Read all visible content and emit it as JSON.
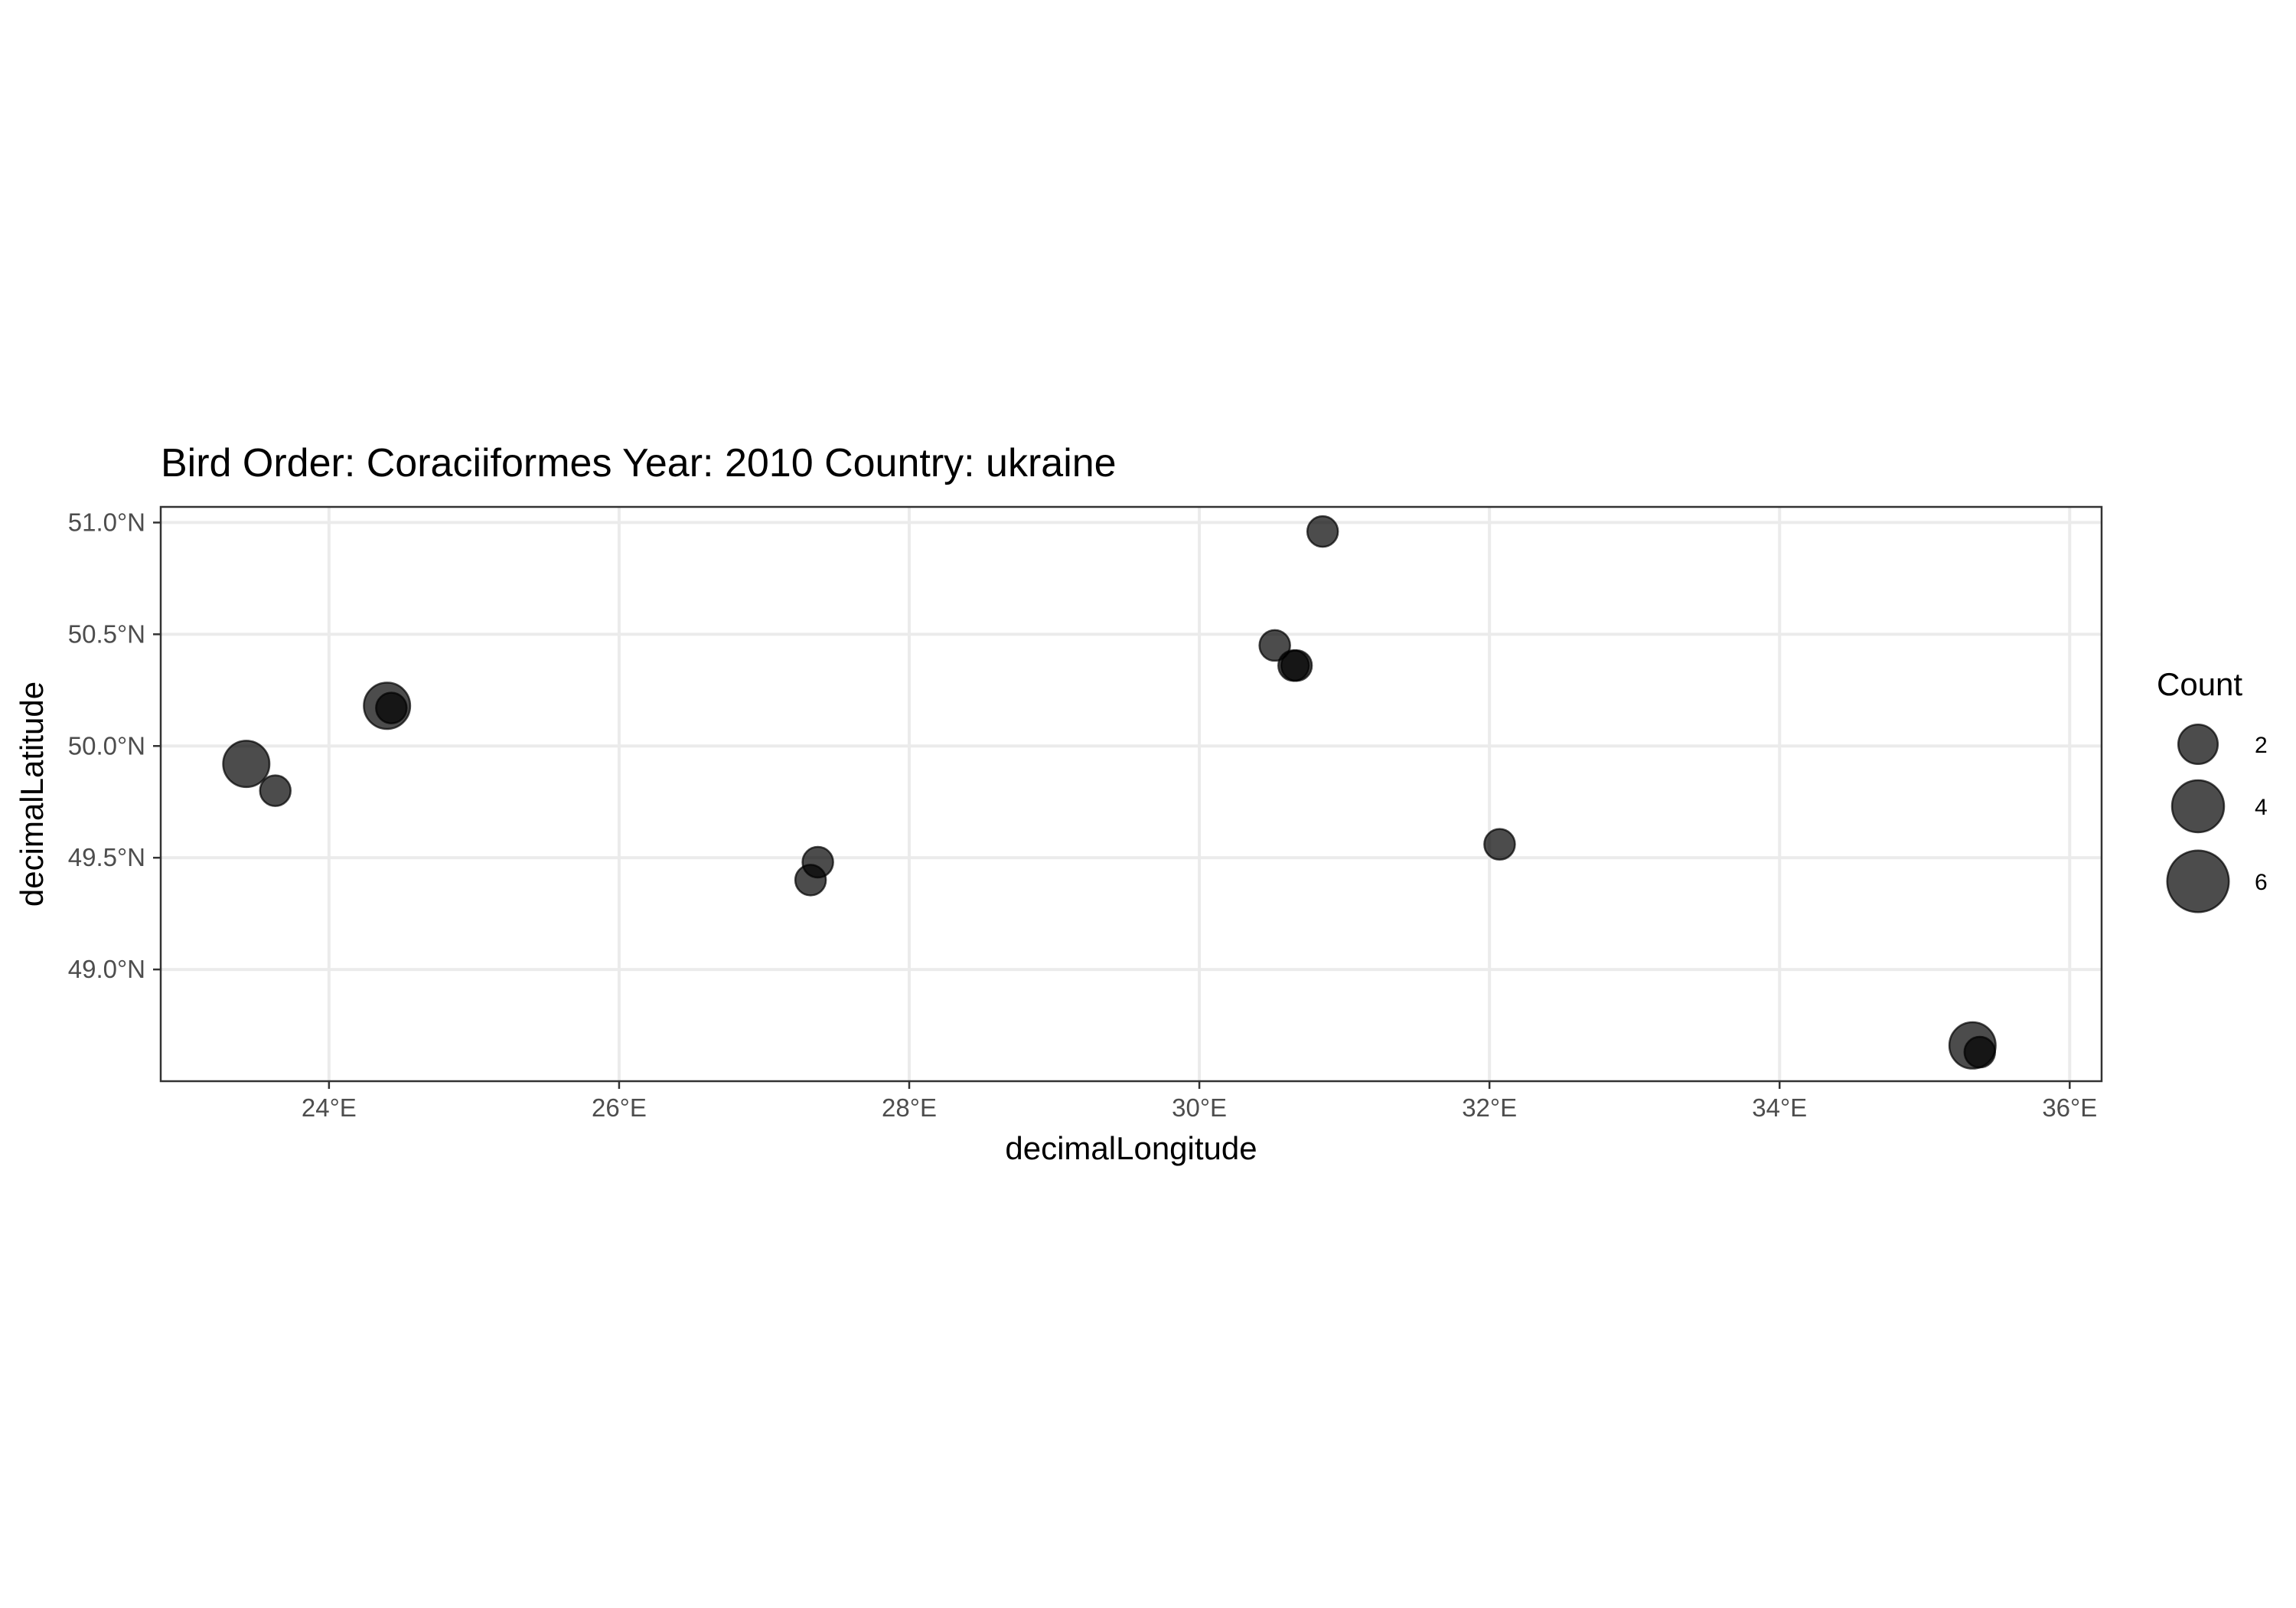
{
  "chart_data": {
    "type": "scatter",
    "title": "Bird Order: Coraciiformes Year: 2010 Country: ukraine",
    "xlabel": "decimalLongitude",
    "ylabel": "decimalLatitude",
    "xlim": [
      22.84,
      36.22
    ],
    "ylim": [
      48.5,
      51.07
    ],
    "x_ticks": [
      24,
      26,
      28,
      30,
      32,
      34,
      36
    ],
    "x_tick_labels": [
      "24°E",
      "26°E",
      "28°E",
      "30°E",
      "32°E",
      "34°E",
      "36°E"
    ],
    "y_ticks": [
      49.0,
      49.5,
      50.0,
      50.5,
      51.0
    ],
    "y_tick_labels": [
      "49.0°N",
      "49.5°N",
      "50.0°N",
      "50.5°N",
      "51.0°N"
    ],
    "grid": true,
    "legend": {
      "title": "Count",
      "position": "right",
      "entries": [
        {
          "label": "2",
          "count": 2
        },
        {
          "label": "4",
          "count": 4
        },
        {
          "label": "6",
          "count": 6
        }
      ]
    },
    "points": [
      {
        "x": 23.43,
        "y": 49.92,
        "count": 3
      },
      {
        "x": 23.63,
        "y": 49.8,
        "count": 1
      },
      {
        "x": 24.4,
        "y": 50.18,
        "count": 3
      },
      {
        "x": 24.43,
        "y": 50.17,
        "count": 1
      },
      {
        "x": 27.32,
        "y": 49.4,
        "count": 1
      },
      {
        "x": 27.37,
        "y": 49.48,
        "count": 1
      },
      {
        "x": 30.52,
        "y": 50.45,
        "count": 1
      },
      {
        "x": 30.65,
        "y": 50.36,
        "count": 1
      },
      {
        "x": 30.67,
        "y": 50.36,
        "count": 1
      },
      {
        "x": 30.85,
        "y": 50.96,
        "count": 1
      },
      {
        "x": 32.07,
        "y": 49.56,
        "count": 1
      },
      {
        "x": 35.33,
        "y": 48.66,
        "count": 3
      },
      {
        "x": 35.38,
        "y": 48.63,
        "count": 1
      }
    ]
  }
}
